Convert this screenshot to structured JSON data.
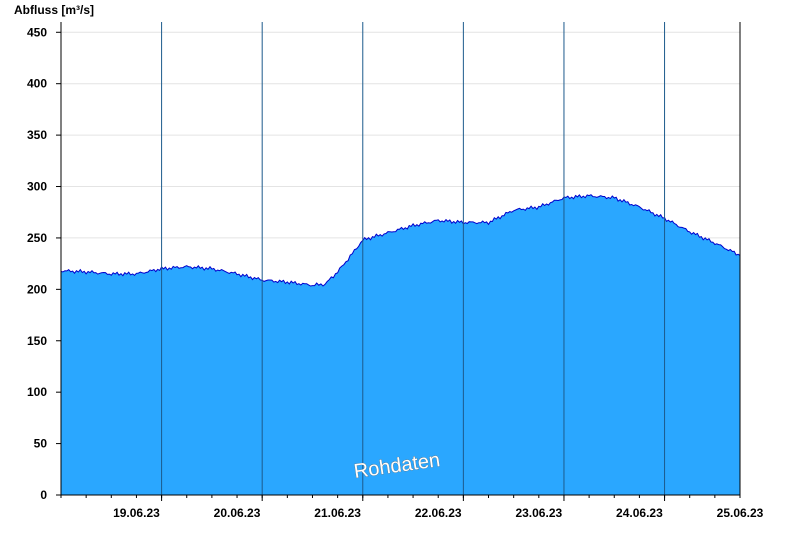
{
  "chart_data": {
    "type": "area",
    "ylabel": "Abfluss [m³/s]",
    "ylim": [
      0,
      460
    ],
    "yticks": [
      0,
      50,
      100,
      150,
      200,
      250,
      300,
      350,
      400,
      450
    ],
    "xlim": [
      "2023-06-18T18:00",
      "2023-06-25T12:00"
    ],
    "day_separators": [
      "2023-06-19T18:00",
      "2023-06-20T18:00",
      "2023-06-21T18:00",
      "2023-06-22T18:00",
      "2023-06-23T18:00",
      "2023-06-24T18:00"
    ],
    "xtick_labels": [
      {
        "t": "2023-06-19T12:00",
        "label": "19.06.23"
      },
      {
        "t": "2023-06-20T12:00",
        "label": "20.06.23"
      },
      {
        "t": "2023-06-21T12:00",
        "label": "21.06.23"
      },
      {
        "t": "2023-06-22T12:00",
        "label": "22.06.23"
      },
      {
        "t": "2023-06-23T12:00",
        "label": "23.06.23"
      },
      {
        "t": "2023-06-24T12:00",
        "label": "24.06.23"
      },
      {
        "t": "2023-06-25T12:00",
        "label": "25.06.23"
      }
    ],
    "grid": true,
    "colors": {
      "fill": "#2aa7ff",
      "line": "#0000cc",
      "grid": "#e4e4e4",
      "separator": "#1c5a8c"
    },
    "series": [
      {
        "points": [
          [
            "2023-06-18T18:00",
            218
          ],
          [
            "2023-06-19T00:00",
            217
          ],
          [
            "2023-06-19T06:00",
            215
          ],
          [
            "2023-06-19T12:00",
            215
          ],
          [
            "2023-06-19T18:00",
            220
          ],
          [
            "2023-06-20T00:00",
            222
          ],
          [
            "2023-06-20T06:00",
            220
          ],
          [
            "2023-06-20T12:00",
            215
          ],
          [
            "2023-06-20T18:00",
            209
          ],
          [
            "2023-06-21T00:00",
            207
          ],
          [
            "2023-06-21T06:00",
            204
          ],
          [
            "2023-06-21T09:00",
            205
          ],
          [
            "2023-06-21T12:00",
            217
          ],
          [
            "2023-06-21T15:00",
            232
          ],
          [
            "2023-06-21T18:00",
            248
          ],
          [
            "2023-06-22T00:00",
            255
          ],
          [
            "2023-06-22T06:00",
            262
          ],
          [
            "2023-06-22T12:00",
            267
          ],
          [
            "2023-06-22T18:00",
            265
          ],
          [
            "2023-06-23T00:00",
            265
          ],
          [
            "2023-06-23T06:00",
            277
          ],
          [
            "2023-06-23T12:00",
            280
          ],
          [
            "2023-06-23T18:00",
            289
          ],
          [
            "2023-06-24T00:00",
            291
          ],
          [
            "2023-06-24T06:00",
            289
          ],
          [
            "2023-06-24T12:00",
            280
          ],
          [
            "2023-06-24T18:00",
            269
          ],
          [
            "2023-06-25T00:00",
            256
          ],
          [
            "2023-06-25T06:00",
            245
          ],
          [
            "2023-06-25T12:00",
            233
          ]
        ]
      }
    ],
    "annotation": "Rohdaten"
  }
}
